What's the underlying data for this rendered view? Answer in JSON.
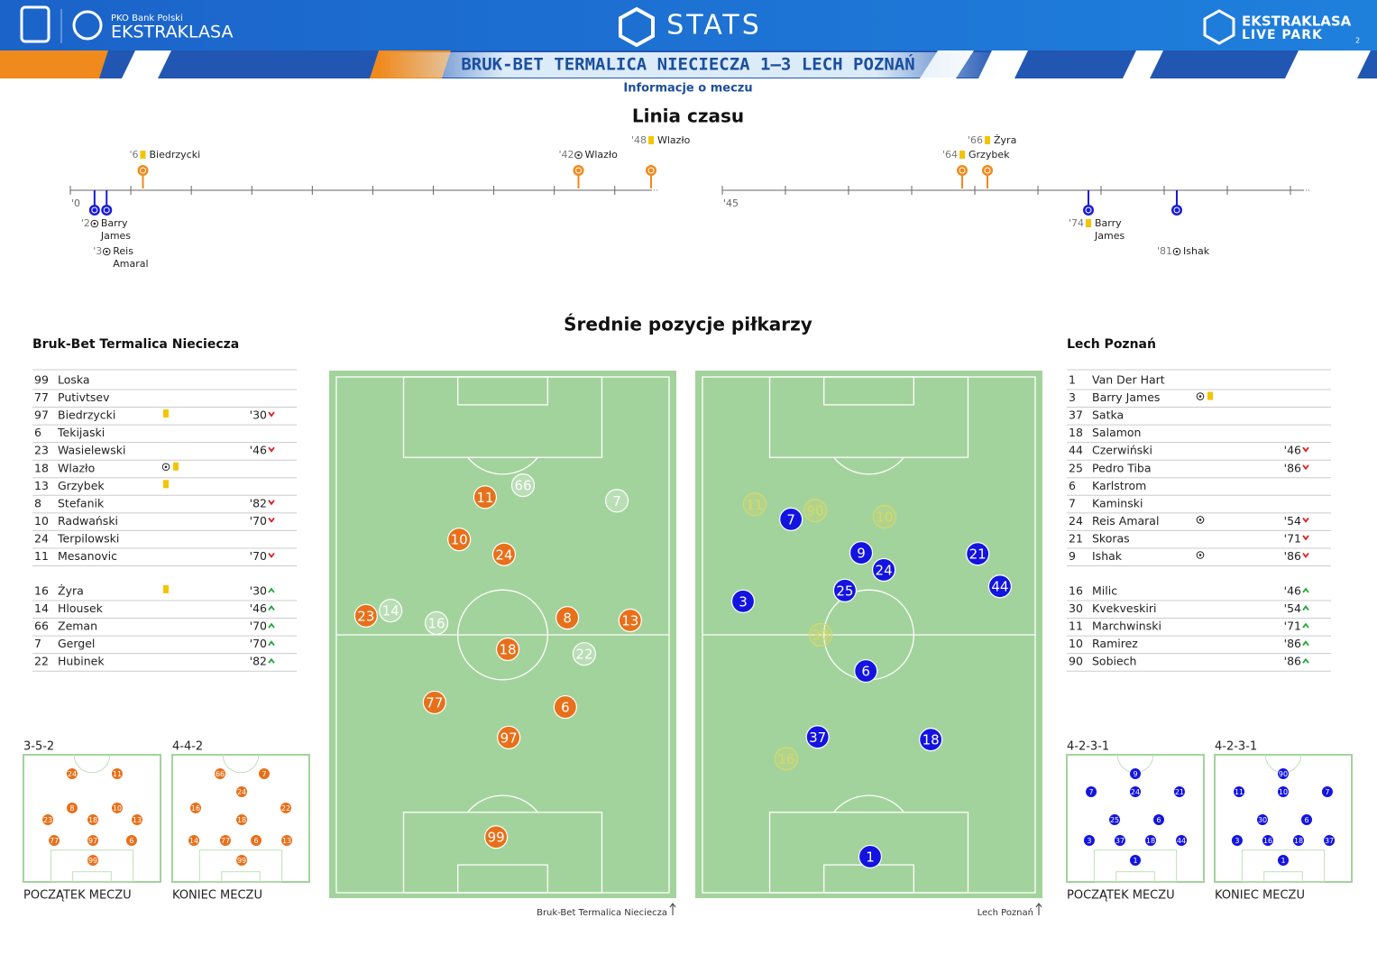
{
  "header": {
    "sponsor": "PKO Bank Polski",
    "league": "EKSTRAKLASA",
    "stats": "STATS",
    "brand_top": "EKSTRAKLASA",
    "brand_bottom": "LIVE PARK",
    "page_number": "2",
    "match": "BRUK-BET TERMALICA NIECIECZA 1–3 LECH POZNAŃ",
    "subtitle": "Informacje o meczu"
  },
  "timeline": {
    "title": "Linia czasu",
    "halves": [
      {
        "start_label": "'0",
        "xlim": [
          0,
          48
        ],
        "xticks": [
          0,
          5,
          10,
          15,
          20,
          25,
          30,
          35,
          40,
          45
        ],
        "events": [
          {
            "minute": 6,
            "label": "'6",
            "icon": "yellow",
            "name": "Biedrzycki",
            "side": "home"
          },
          {
            "minute": 42,
            "label": "'42",
            "icon": "goal",
            "name": "Wlazło",
            "side": "home"
          },
          {
            "minute": 48,
            "label": "'48",
            "icon": "yellow",
            "name": "Wlazło",
            "side": "home"
          },
          {
            "minute": 2,
            "label": "'2",
            "icon": "goal",
            "name": "Barry James",
            "side": "away"
          },
          {
            "minute": 3,
            "label": "'3",
            "icon": "goal",
            "name": "Reis Amaral",
            "side": "away"
          }
        ]
      },
      {
        "start_label": "'45",
        "xlim": [
          45,
          91
        ],
        "xticks": [
          45,
          50,
          55,
          60,
          65,
          70,
          75,
          80,
          85,
          90
        ],
        "events": [
          {
            "minute": 64,
            "label": "'64",
            "icon": "yellow",
            "name": "Grzybek",
            "side": "home"
          },
          {
            "minute": 66,
            "label": "'66",
            "icon": "yellow",
            "name": "Żyra",
            "side": "home"
          },
          {
            "minute": 74,
            "label": "'74",
            "icon": "yellow",
            "name": "Barry James",
            "side": "away"
          },
          {
            "minute": 81,
            "label": "'81",
            "icon": "goal",
            "name": "Ishak",
            "side": "away"
          }
        ]
      }
    ]
  },
  "positions": {
    "title": "Średnie pozycje piłkarzy",
    "teams": [
      {
        "name": "Bruk-Bet Termalica Nieciecza",
        "caption": "Bruk-Bet Termalica Nieciecza",
        "color": "#e8701a",
        "sub_color": "#ffffff",
        "starters": [
          {
            "number": "99",
            "name": "Loska"
          },
          {
            "number": "77",
            "name": "Putivtsev"
          },
          {
            "number": "97",
            "name": "Biedrzycki",
            "events": [
              "yellow"
            ],
            "sub": "'30",
            "sub_dir": "out"
          },
          {
            "number": "6",
            "name": "Tekijaski"
          },
          {
            "number": "23",
            "name": "Wasielewski",
            "sub": "'46",
            "sub_dir": "out"
          },
          {
            "number": "18",
            "name": "Wlazło",
            "events": [
              "goal",
              "yellow"
            ]
          },
          {
            "number": "13",
            "name": "Grzybek",
            "events": [
              "yellow"
            ]
          },
          {
            "number": "8",
            "name": "Stefanik",
            "sub": "'82",
            "sub_dir": "out"
          },
          {
            "number": "10",
            "name": "Radwański",
            "sub": "'70",
            "sub_dir": "out"
          },
          {
            "number": "24",
            "name": "Terpilowski"
          },
          {
            "number": "11",
            "name": "Mesanovic",
            "sub": "'70",
            "sub_dir": "out"
          }
        ],
        "substitutes": [
          {
            "number": "16",
            "name": "Żyra",
            "events": [
              "yellow"
            ],
            "sub": "'30",
            "sub_dir": "in"
          },
          {
            "number": "14",
            "name": "Hlousek",
            "sub": "'46",
            "sub_dir": "in"
          },
          {
            "number": "66",
            "name": "Zeman",
            "sub": "'70",
            "sub_dir": "in"
          },
          {
            "number": "7",
            "name": "Gergel",
            "sub": "'70",
            "sub_dir": "in"
          },
          {
            "number": "22",
            "name": "Hubinek",
            "sub": "'82",
            "sub_dir": "in"
          }
        ],
        "players": [
          {
            "number": "11",
            "x": 44.7,
            "y": 23.3,
            "sub": false
          },
          {
            "number": "66",
            "x": 56.1,
            "y": 21.0,
            "sub": true
          },
          {
            "number": "7",
            "x": 84.3,
            "y": 24.0,
            "sub": true
          },
          {
            "number": "10",
            "x": 36.9,
            "y": 31.5,
            "sub": false
          },
          {
            "number": "24",
            "x": 50.4,
            "y": 34.4,
            "sub": false
          },
          {
            "number": "23",
            "x": 8.9,
            "y": 46.3,
            "sub": false
          },
          {
            "number": "14",
            "x": 16.3,
            "y": 45.3,
            "sub": true
          },
          {
            "number": "16",
            "x": 30.1,
            "y": 47.7,
            "sub": true
          },
          {
            "number": "8",
            "x": 69.4,
            "y": 46.7,
            "sub": false
          },
          {
            "number": "13",
            "x": 88.3,
            "y": 47.2,
            "sub": false
          },
          {
            "number": "18",
            "x": 51.5,
            "y": 52.8,
            "sub": false
          },
          {
            "number": "22",
            "x": 74.5,
            "y": 53.7,
            "sub": true
          },
          {
            "number": "77",
            "x": 29.5,
            "y": 63.1,
            "sub": false
          },
          {
            "number": "6",
            "x": 68.8,
            "y": 64.0,
            "sub": false
          },
          {
            "number": "97",
            "x": 51.8,
            "y": 69.9,
            "sub": false
          },
          {
            "number": "99",
            "x": 48.0,
            "y": 89.2,
            "sub": false
          }
        ],
        "formations": [
          {
            "name": "3-5-2",
            "label": "POCZĄTEK MECZU",
            "players": [
              {
                "number": "24",
                "x": 35.5,
                "y": 14.9
              },
              {
                "number": "11",
                "x": 68.4,
                "y": 14.9
              },
              {
                "number": "8",
                "x": 35.5,
                "y": 41.8
              },
              {
                "number": "10",
                "x": 68.4,
                "y": 41.8
              },
              {
                "number": "23",
                "x": 17.8,
                "y": 51.1
              },
              {
                "number": "18",
                "x": 50.7,
                "y": 51.1
              },
              {
                "number": "13",
                "x": 82.9,
                "y": 51.1
              },
              {
                "number": "77",
                "x": 22.4,
                "y": 67.4
              },
              {
                "number": "97",
                "x": 50.7,
                "y": 67.4
              },
              {
                "number": "6",
                "x": 78.9,
                "y": 67.4
              },
              {
                "number": "99",
                "x": 50.7,
                "y": 83.0
              }
            ]
          },
          {
            "name": "4-4-2",
            "label": "KONIEC MECZU",
            "players": [
              {
                "number": "66",
                "x": 34.9,
                "y": 14.9
              },
              {
                "number": "7",
                "x": 67.1,
                "y": 14.9
              },
              {
                "number": "24",
                "x": 50.7,
                "y": 29.1
              },
              {
                "number": "16",
                "x": 17.1,
                "y": 41.8
              },
              {
                "number": "18",
                "x": 50.7,
                "y": 51.1
              },
              {
                "number": "22",
                "x": 82.9,
                "y": 41.8
              },
              {
                "number": "14",
                "x": 15.8,
                "y": 67.4
              },
              {
                "number": "77",
                "x": 38.8,
                "y": 67.4
              },
              {
                "number": "6",
                "x": 61.2,
                "y": 67.4
              },
              {
                "number": "13",
                "x": 83.6,
                "y": 67.4
              },
              {
                "number": "99",
                "x": 50.7,
                "y": 83.0
              }
            ]
          }
        ]
      },
      {
        "name": "Lech Poznań",
        "caption": "Lech Poznań",
        "color": "#1414e0",
        "sub_color": "#d6d86a",
        "starters": [
          {
            "number": "1",
            "name": "Van Der Hart"
          },
          {
            "number": "3",
            "name": "Barry James",
            "events": [
              "goal",
              "yellow"
            ]
          },
          {
            "number": "37",
            "name": "Satka"
          },
          {
            "number": "18",
            "name": "Salamon"
          },
          {
            "number": "44",
            "name": "Czerwiński",
            "sub": "'46",
            "sub_dir": "out"
          },
          {
            "number": "25",
            "name": "Pedro Tiba",
            "sub": "'86",
            "sub_dir": "out"
          },
          {
            "number": "6",
            "name": "Karlstrom"
          },
          {
            "number": "7",
            "name": "Kaminski"
          },
          {
            "number": "24",
            "name": "Reis Amaral",
            "events": [
              "goal"
            ],
            "sub": "'54",
            "sub_dir": "out"
          },
          {
            "number": "21",
            "name": "Skoras",
            "sub": "'71",
            "sub_dir": "out"
          },
          {
            "number": "9",
            "name": "Ishak",
            "events": [
              "goal"
            ],
            "sub": "'86",
            "sub_dir": "out"
          }
        ],
        "substitutes": [
          {
            "number": "16",
            "name": "Milic",
            "sub": "'46",
            "sub_dir": "in"
          },
          {
            "number": "30",
            "name": "Kvekveskiri",
            "sub": "'54",
            "sub_dir": "in"
          },
          {
            "number": "11",
            "name": "Marchwinski",
            "sub": "'71",
            "sub_dir": "in"
          },
          {
            "number": "10",
            "name": "Ramirez",
            "sub": "'86",
            "sub_dir": "in"
          },
          {
            "number": "90",
            "name": "Sobiech",
            "sub": "'86",
            "sub_dir": "in"
          }
        ],
        "players": [
          {
            "number": "11",
            "x": 15.7,
            "y": 24.7,
            "sub": true
          },
          {
            "number": "7",
            "x": 26.6,
            "y": 27.6,
            "sub": false
          },
          {
            "number": "90",
            "x": 33.9,
            "y": 25.9,
            "sub": true
          },
          {
            "number": "10",
            "x": 54.7,
            "y": 27.1,
            "sub": true
          },
          {
            "number": "9",
            "x": 47.7,
            "y": 34.1,
            "sub": false
          },
          {
            "number": "24",
            "x": 54.5,
            "y": 37.4,
            "sub": false
          },
          {
            "number": "21",
            "x": 82.7,
            "y": 34.3,
            "sub": false
          },
          {
            "number": "44",
            "x": 89.4,
            "y": 40.6,
            "sub": false
          },
          {
            "number": "25",
            "x": 42.8,
            "y": 41.4,
            "sub": false
          },
          {
            "number": "3",
            "x": 12.2,
            "y": 43.5,
            "sub": false
          },
          {
            "number": "30",
            "x": 35.5,
            "y": 50.0,
            "sub": true
          },
          {
            "number": "6",
            "x": 49.1,
            "y": 57.0,
            "sub": false
          },
          {
            "number": "37",
            "x": 34.6,
            "y": 69.8,
            "sub": false
          },
          {
            "number": "18",
            "x": 68.6,
            "y": 70.3,
            "sub": false
          },
          {
            "number": "16",
            "x": 25.2,
            "y": 74.0,
            "sub": true
          },
          {
            "number": "1",
            "x": 50.4,
            "y": 93.0,
            "sub": false
          }
        ],
        "formations": [
          {
            "name": "4-2-3-1",
            "label": "POCZĄTEK MECZU",
            "players": [
              {
                "number": "9",
                "x": 50,
                "y": 14.9
              },
              {
                "number": "7",
                "x": 17.8,
                "y": 29.1
              },
              {
                "number": "24",
                "x": 50,
                "y": 29.1
              },
              {
                "number": "21",
                "x": 82.2,
                "y": 29.1
              },
              {
                "number": "25",
                "x": 34.9,
                "y": 51.1
              },
              {
                "number": "6",
                "x": 67.1,
                "y": 51.1
              },
              {
                "number": "3",
                "x": 16.4,
                "y": 67.4
              },
              {
                "number": "37",
                "x": 38.8,
                "y": 67.4
              },
              {
                "number": "18",
                "x": 61.2,
                "y": 67.4
              },
              {
                "number": "44",
                "x": 83.6,
                "y": 67.4
              },
              {
                "number": "1",
                "x": 50,
                "y": 83.0
              }
            ]
          },
          {
            "name": "4-2-3-1",
            "label": "KONIEC MECZU",
            "players": [
              {
                "number": "90",
                "x": 50,
                "y": 14.9
              },
              {
                "number": "11",
                "x": 17.8,
                "y": 29.1
              },
              {
                "number": "10",
                "x": 50,
                "y": 29.1
              },
              {
                "number": "7",
                "x": 82.2,
                "y": 29.1
              },
              {
                "number": "30",
                "x": 34.9,
                "y": 51.1
              },
              {
                "number": "6",
                "x": 67.1,
                "y": 51.1
              },
              {
                "number": "3",
                "x": 16.4,
                "y": 67.4
              },
              {
                "number": "16",
                "x": 38.8,
                "y": 67.4
              },
              {
                "number": "18",
                "x": 61.2,
                "y": 67.4
              },
              {
                "number": "37",
                "x": 83.6,
                "y": 67.4
              },
              {
                "number": "1",
                "x": 50,
                "y": 83.0
              }
            ]
          }
        ]
      }
    ]
  }
}
